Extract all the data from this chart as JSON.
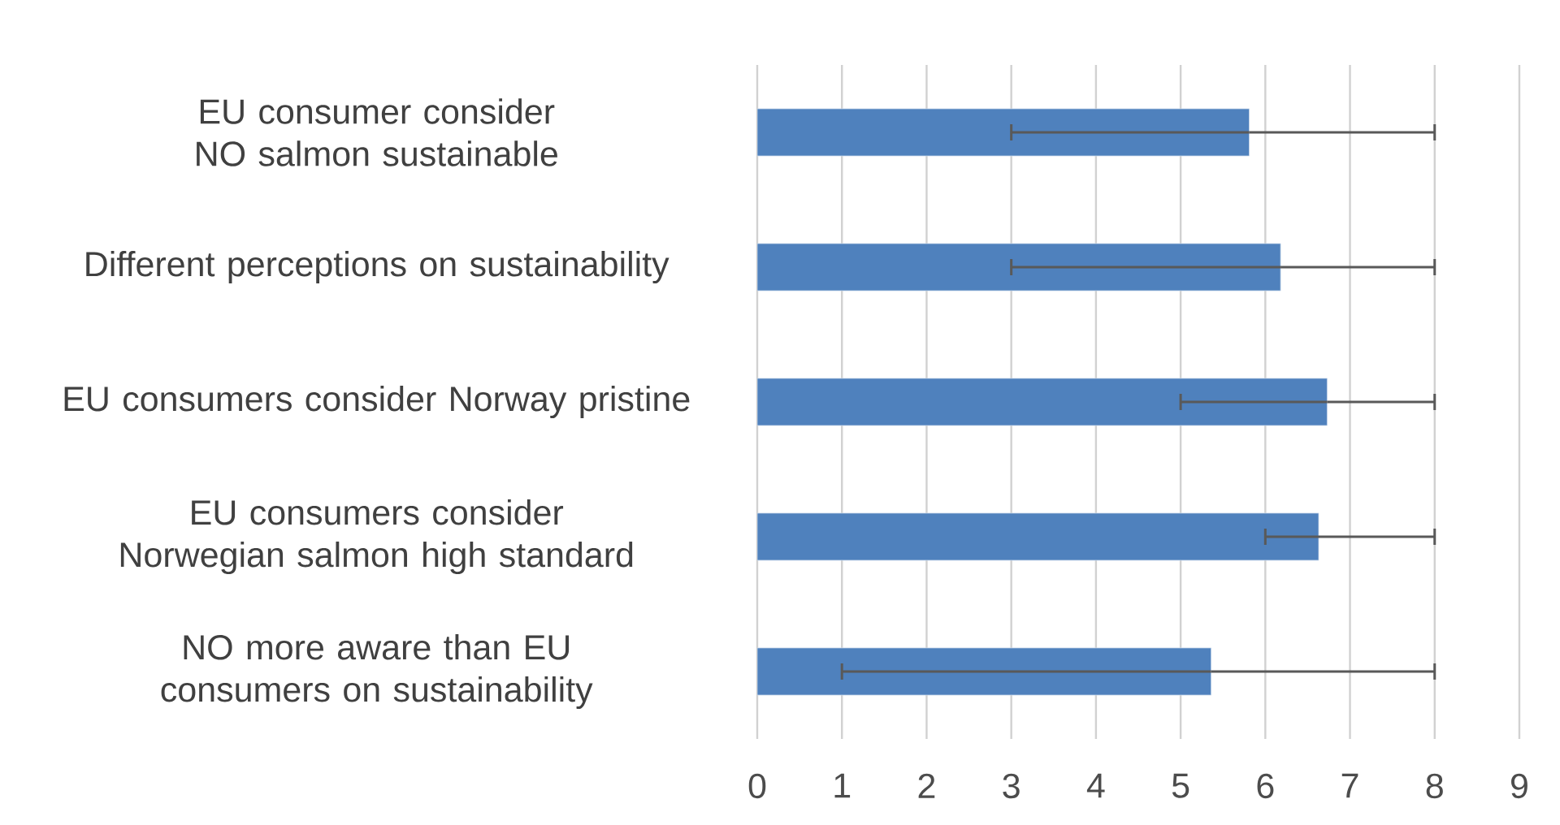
{
  "chart_data": {
    "type": "bar",
    "orientation": "horizontal",
    "categories": [
      "EU consumer consider NO salmon sustainable",
      "Different perceptions on sustainability",
      "EU consumers consider Norway pristine",
      "EU consumers consider Norwegian salmon high standard",
      "NO more aware than EU consumers on sustainability"
    ],
    "values": [
      5.81,
      6.18,
      6.73,
      6.63,
      5.36
    ],
    "errors": [
      [
        3,
        8
      ],
      [
        3,
        8
      ],
      [
        5,
        8
      ],
      [
        6,
        8
      ],
      [
        1,
        8
      ]
    ],
    "color": "#4f81bd",
    "xlim": [
      0,
      9
    ],
    "xticks": [
      0,
      1,
      2,
      3,
      4,
      5,
      6,
      7,
      8,
      9
    ],
    "grid": "x"
  }
}
